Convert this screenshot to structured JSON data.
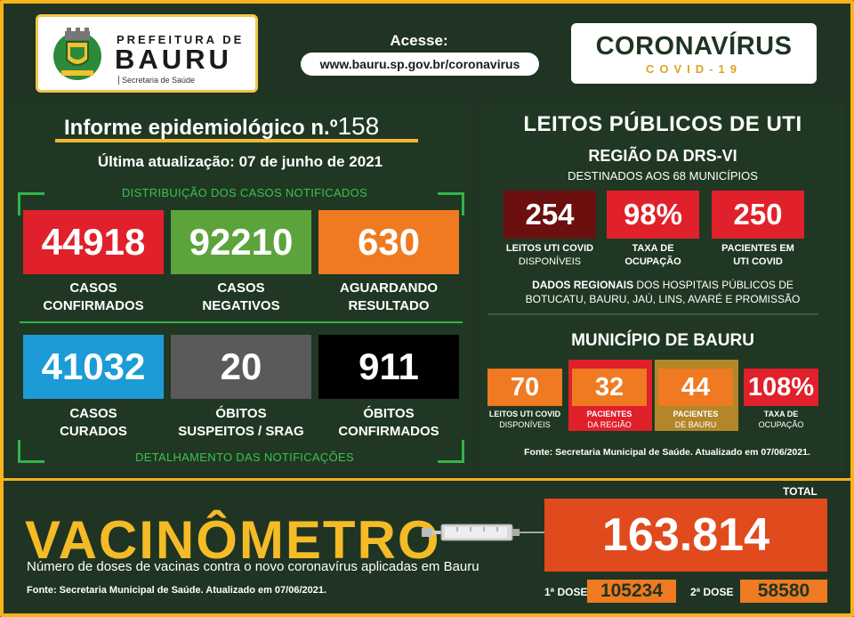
{
  "header": {
    "pref_top": "PREFEITURA DE",
    "pref_city": "BAURU",
    "pref_sec": "Secretaria de Saúde",
    "acesse_label": "Acesse:",
    "url": "www.bauru.sp.gov.br/coronavirus",
    "covid_title": "CORONAVÍRUS",
    "covid_sub": "COVID-19"
  },
  "informe": {
    "title": "Informe epidemiológico n.º",
    "number": "158",
    "update": "Última atualização: 07 de junho de 2021",
    "dist_title": "DISTRIBUIÇÃO DOS CASOS NOTIFICADOS",
    "det_title": "DETALHAMENTO DAS NOTIFICAÇÕES"
  },
  "stats": [
    {
      "value": "44918",
      "line1": "CASOS",
      "line2": "CONFIRMADOS",
      "color": "#e0202a"
    },
    {
      "value": "92210",
      "line1": "CASOS",
      "line2": "NEGATIVOS",
      "color": "#5ca33c"
    },
    {
      "value": "630",
      "line1": "AGUARDANDO",
      "line2": "RESULTADO",
      "color": "#f07a21"
    },
    {
      "value": "41032",
      "line1": "CASOS",
      "line2": "CURADOS",
      "color": "#1d9bd7"
    },
    {
      "value": "20",
      "line1": "ÓBITOS",
      "line2": "SUSPEITOS / SRAG",
      "color": "#5a5a5a"
    },
    {
      "value": "911",
      "line1": "ÓBITOS",
      "line2": "CONFIRMADOS",
      "color": "#000000"
    }
  ],
  "uti": {
    "title": "LEITOS PÚBLICOS DE UTI",
    "region": "REGIÃO DA DRS-VI",
    "destinados": "DESTINADOS AOS 68 MUNICÍPIOS",
    "regional": [
      {
        "value": "254",
        "line1": "LEITOS UTI COVID",
        "line2": "DISPONÍVEIS",
        "color": "#6b0f0f"
      },
      {
        "value": "98%",
        "line1": "TAXA DE",
        "line2": "OCUPAÇÃO",
        "color": "#e0202a"
      },
      {
        "value": "250",
        "line1": "PACIENTES EM",
        "line2": "UTI COVID",
        "color": "#e0202a"
      }
    ],
    "dados_bold": "DADOS REGIONAIS",
    "dados_rest": " DOS HOSPITAIS PÚBLICOS DE",
    "dados_line2": "BOTUCATU, BAURU, JAÚ, LINS, AVARÉ E PROMISSÃO",
    "municipio": "MUNICÍPIO DE BAURU",
    "municipal": [
      {
        "value": "70",
        "line1": "LEITOS UTI COVID",
        "line2": "DISPONÍVEIS",
        "color": "#f07a21",
        "text": "#ffffff",
        "label_bg": ""
      },
      {
        "value": "32",
        "line1": "PACIENTES",
        "line2": "DA REGIÃO",
        "color": "#f07a21",
        "text": "#ffffff",
        "label_bg": "#e0202a"
      },
      {
        "value": "44",
        "line1": "PACIENTES",
        "line2": "DE BAURU",
        "color": "#f07a21",
        "text": "#ffffff",
        "label_bg": "#b3862a"
      },
      {
        "value": "108%",
        "line1": "TAXA DE",
        "line2": "OCUPAÇÃO",
        "color": "#e0202a",
        "text": "#ffffff",
        "label_bg": ""
      }
    ],
    "fonte": "Fonte: Secretaria Municipal de Saúde. Atualizado em 07/06/2021."
  },
  "vacinometro": {
    "title": "VACINÔMETRO",
    "subtitle": "Número de doses de vacinas contra o novo coronavírus aplicadas em Bauru",
    "fonte": "Fonte: Secretaria Municipal de Saúde. Atualizado em 07/06/2021.",
    "total_label": "TOTAL",
    "total": "163.814",
    "dose1_label": "1ª DOSE",
    "dose1": "105234",
    "dose2_label": "2ª DOSE",
    "dose2": "58580"
  }
}
